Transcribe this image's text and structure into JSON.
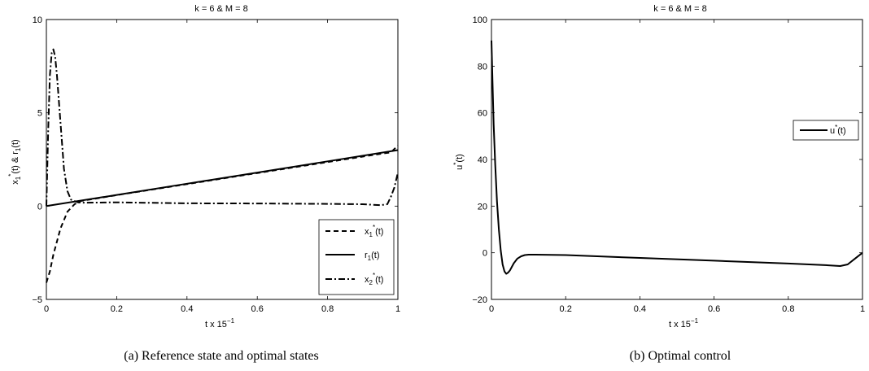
{
  "chart_data": [
    {
      "type": "line",
      "title": "k = 6 & M = 8",
      "xlabel": "t x 15",
      "xlabel_exp": "−1",
      "ylabel": "x",
      "ylim": [
        -5,
        10
      ],
      "xlim": [
        0,
        1
      ],
      "x_ticks": [
        "0",
        "0.2",
        "0.4",
        "0.6",
        "0.8",
        "1"
      ],
      "y_ticks": [
        "−5",
        "0",
        "5",
        "10"
      ],
      "legend_position": "lower-right",
      "caption": "(a)  Reference state and optimal states",
      "series": [
        {
          "name": "x1*(t)",
          "style": "dashed",
          "x": [
            0,
            0.01,
            0.02,
            0.04,
            0.06,
            0.08,
            0.1,
            0.2,
            0.4,
            0.6,
            0.8,
            0.95,
            0.98,
            1
          ],
          "y": [
            -4.1,
            -3.5,
            -2.6,
            -1.2,
            -0.3,
            0.1,
            0.28,
            0.59,
            1.18,
            1.77,
            2.36,
            2.8,
            2.88,
            3.25
          ]
        },
        {
          "name": "r1(t)",
          "style": "solid",
          "x": [
            0,
            0.2,
            0.4,
            0.6,
            0.8,
            1
          ],
          "y": [
            0,
            0.6,
            1.2,
            1.8,
            2.4,
            3.0
          ]
        },
        {
          "name": "x2*(t)",
          "style": "dashdot",
          "x": [
            0,
            0.005,
            0.01,
            0.015,
            0.02,
            0.025,
            0.03,
            0.04,
            0.05,
            0.06,
            0.07,
            0.09,
            0.1,
            0.2,
            0.4,
            0.6,
            0.8,
            0.9,
            0.95,
            0.97,
            0.98,
            0.99,
            1
          ],
          "y": [
            0,
            4.0,
            7.0,
            8.2,
            8.4,
            8.0,
            7.0,
            4.5,
            2.0,
            0.8,
            0.35,
            0.2,
            0.18,
            0.2,
            0.15,
            0.14,
            0.12,
            0.1,
            0.05,
            0.1,
            0.5,
            1.0,
            1.8
          ]
        }
      ]
    },
    {
      "type": "line",
      "title": "k = 6 & M = 8",
      "xlabel": "t x 15",
      "xlabel_exp": "−1",
      "ylabel": "u",
      "ylim": [
        -20,
        100
      ],
      "xlim": [
        0,
        1
      ],
      "x_ticks": [
        "0",
        "0.2",
        "0.4",
        "0.6",
        "0.8",
        "1"
      ],
      "y_ticks": [
        "−20",
        "0",
        "20",
        "40",
        "60",
        "80",
        "100"
      ],
      "legend_position": "upper-right",
      "caption": "(b)  Optimal control",
      "series": [
        {
          "name": "u*(t)",
          "style": "solid",
          "x": [
            0,
            0.003,
            0.006,
            0.01,
            0.015,
            0.02,
            0.025,
            0.03,
            0.035,
            0.04,
            0.045,
            0.05,
            0.06,
            0.07,
            0.08,
            0.09,
            0.1,
            0.12,
            0.2,
            0.4,
            0.6,
            0.8,
            0.9,
            0.94,
            0.96,
            0.98,
            1
          ],
          "y": [
            91,
            72,
            55,
            38,
            22,
            10,
            1,
            -5,
            -8,
            -9,
            -8.5,
            -7.5,
            -4.5,
            -2.5,
            -1.5,
            -1,
            -0.8,
            -0.8,
            -1,
            -2.2,
            -3.4,
            -4.6,
            -5.3,
            -5.7,
            -5,
            -2.5,
            0
          ]
        }
      ]
    }
  ]
}
